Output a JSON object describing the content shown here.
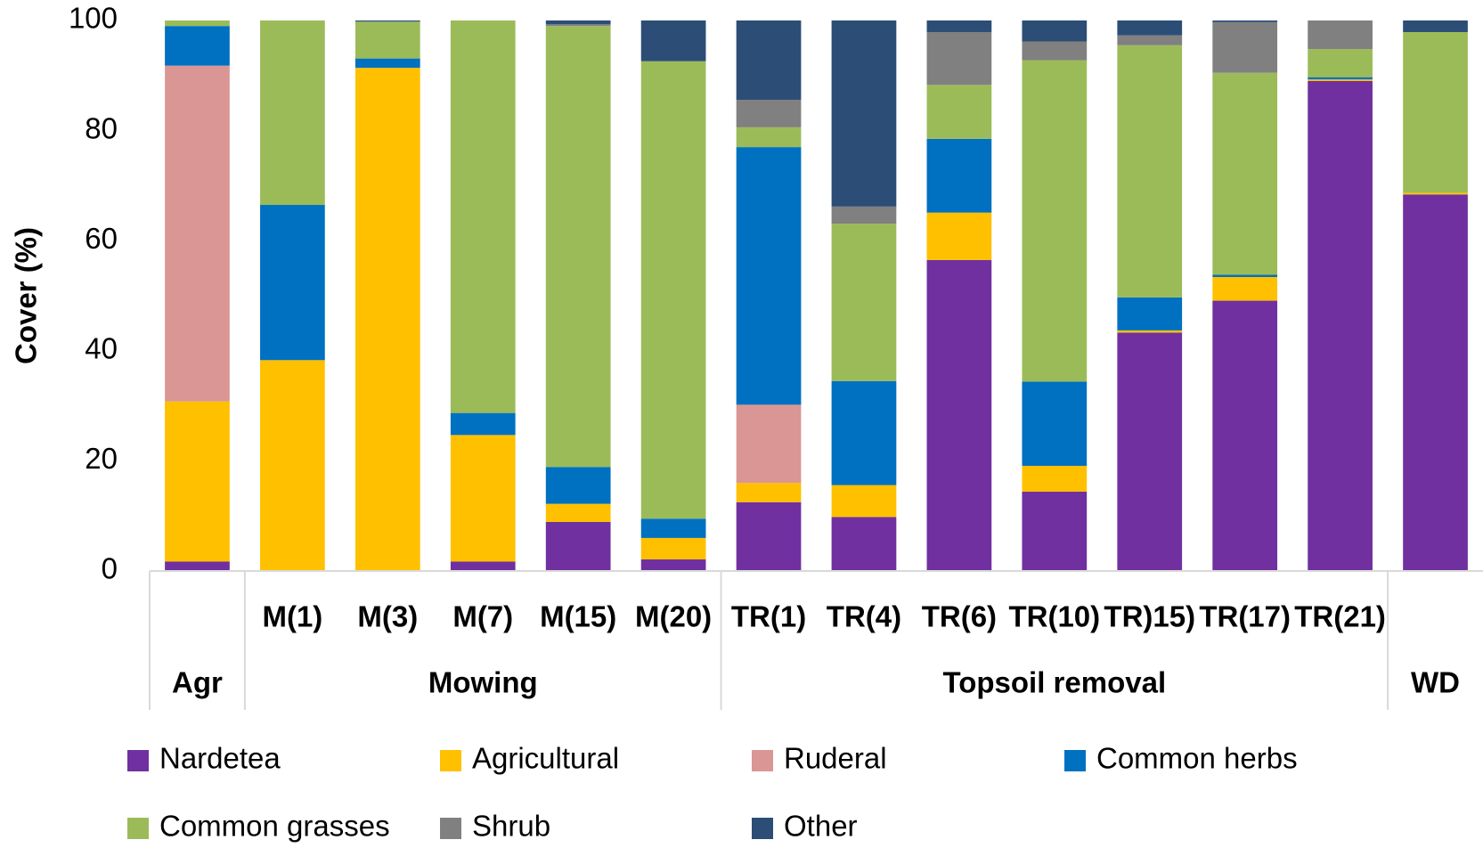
{
  "chart_data": {
    "type": "stacked_bar",
    "y_label": "Cover (%)",
    "categories": [
      null,
      "M(1)",
      "M(3)",
      "M(7)",
      "M(15)",
      "M(20)",
      "TR(1)",
      "TR(4)",
      "TR(6)",
      "TR(10)",
      "TR)15)",
      "TR(17)",
      "TR(21)",
      null
    ],
    "groups": [
      {
        "label": "Agr",
        "size": 1
      },
      {
        "label": "Mowing",
        "size": 5
      },
      {
        "label": "Topsoil removal",
        "size": 7
      },
      {
        "label": "WD",
        "size": 1
      }
    ],
    "ylim": [
      0,
      100
    ],
    "yticks": [
      0,
      20,
      40,
      60,
      80,
      100
    ],
    "legend": "bottom",
    "series": [
      {
        "name": "Nardetea",
        "color": "#7030a0",
        "values": [
          1.7,
          0,
          0,
          1.7,
          8.9,
          2.1,
          12.5,
          9.8,
          56.5,
          14.4,
          43.3,
          49.1,
          89,
          68.4
        ]
      },
      {
        "name": "Agricultural",
        "color": "#ffc000",
        "values": [
          29.1,
          38.3,
          91.4,
          23,
          3.3,
          3.9,
          3.5,
          5.8,
          8.6,
          4.7,
          0.4,
          4.3,
          0.3,
          0.3
        ]
      },
      {
        "name": "Ruderal",
        "color": "#da9694",
        "values": [
          61,
          0,
          0,
          0,
          0,
          0,
          14.2,
          0,
          0,
          0,
          0,
          0,
          0,
          0
        ]
      },
      {
        "name": "Common herbs",
        "color": "#0070c0",
        "values": [
          7.2,
          28.2,
          1.7,
          4,
          6.7,
          3.5,
          46.8,
          18.9,
          13.4,
          15.3,
          6,
          0.4,
          0.4,
          0
        ]
      },
      {
        "name": "Common grasses",
        "color": "#9bbb59",
        "values": [
          1,
          33.5,
          6.7,
          71.3,
          80.1,
          83.1,
          3.6,
          28.6,
          9.8,
          58.4,
          45.8,
          36.7,
          5.1,
          29.2
        ]
      },
      {
        "name": "Shrub",
        "color": "#808080",
        "values": [
          0,
          0,
          0,
          0,
          0.3,
          0,
          5,
          3.1,
          9.6,
          3.4,
          1.8,
          9.2,
          5.2,
          0
        ]
      },
      {
        "name": "Other",
        "color": "#2c4d75",
        "values": [
          0,
          0,
          0.2,
          0,
          0.7,
          7.4,
          14.4,
          33.8,
          2.1,
          3.8,
          2.7,
          0.3,
          0,
          2.1
        ]
      }
    ]
  }
}
